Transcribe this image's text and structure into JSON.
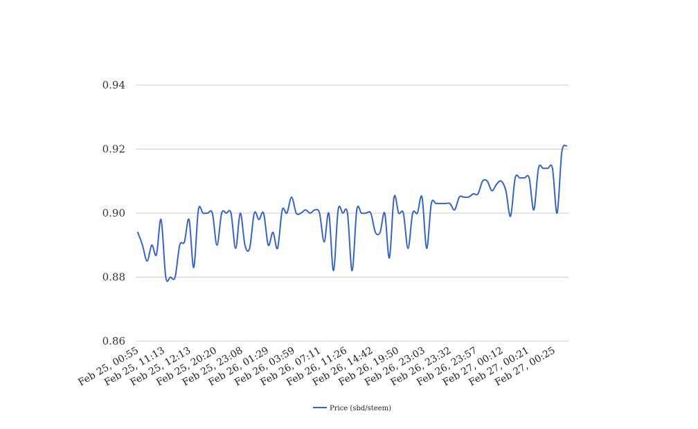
{
  "chart_data": {
    "type": "line",
    "title": "",
    "xlabel": "",
    "ylabel": "",
    "ylim": [
      0.86,
      0.94
    ],
    "yticks": [
      "0.86",
      "0.88",
      "0.90",
      "0.92",
      "0.94"
    ],
    "xtick_labels": [
      "Feb 25, 00:55",
      "Feb 25, 11:13",
      "Feb 25, 12:13",
      "Feb 25, 20:20",
      "Feb 25, 23:08",
      "Feb 26, 01:29",
      "Feb 26, 03:59",
      "Feb 26, 07:11",
      "Feb 26, 11:26",
      "Feb 26, 14:42",
      "Feb 26, 19:50",
      "Feb 26, 23:03",
      "Feb 26, 23:32",
      "Feb 26, 23:57",
      "Feb 27, 00:12",
      "Feb 27, 00:21",
      "Feb 27, 00:25"
    ],
    "grid": true,
    "legend_position": "bottom",
    "series": [
      {
        "name": "Price (sbd/steem)",
        "color": "#3463c4",
        "values": [
          0.894,
          0.89,
          0.885,
          0.89,
          0.887,
          0.898,
          0.88,
          0.88,
          0.88,
          0.89,
          0.891,
          0.898,
          0.883,
          0.901,
          0.9,
          0.9,
          0.9,
          0.89,
          0.9,
          0.9,
          0.9,
          0.889,
          0.9,
          0.89,
          0.889,
          0.9,
          0.898,
          0.9,
          0.89,
          0.894,
          0.889,
          0.901,
          0.9,
          0.905,
          0.9,
          0.9,
          0.901,
          0.9,
          0.901,
          0.9,
          0.891,
          0.9,
          0.882,
          0.901,
          0.9,
          0.9,
          0.882,
          0.901,
          0.9,
          0.9,
          0.9,
          0.894,
          0.894,
          0.9,
          0.886,
          0.905,
          0.9,
          0.9,
          0.889,
          0.9,
          0.9,
          0.905,
          0.889,
          0.903,
          0.903,
          0.903,
          0.903,
          0.903,
          0.901,
          0.905,
          0.905,
          0.905,
          0.906,
          0.906,
          0.91,
          0.91,
          0.907,
          0.909,
          0.91,
          0.907,
          0.899,
          0.911,
          0.911,
          0.911,
          0.911,
          0.901,
          0.914,
          0.914,
          0.914,
          0.914,
          0.9,
          0.919,
          0.921
        ]
      }
    ]
  }
}
